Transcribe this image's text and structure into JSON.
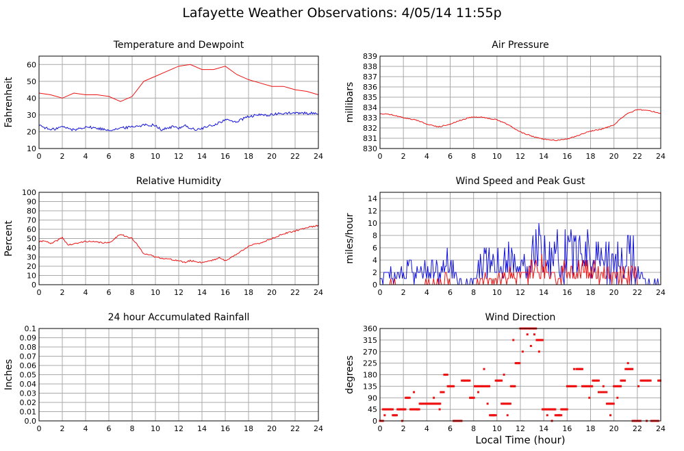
{
  "page": {
    "title": "Lafayette Weather Observations: 4/05/14 11:55p",
    "xlabel": "Local Time (hour)"
  },
  "colors": {
    "red": "#ee1111",
    "blue": "#1111dd",
    "grid": "#a8a8a8",
    "frame": "#000000"
  },
  "chart_data": [
    {
      "id": "temp",
      "type": "line",
      "title": "Temperature and Dewpoint",
      "ylabel": "Fahrenheit",
      "xlim": [
        0,
        24
      ],
      "ylim": [
        10,
        65
      ],
      "xticks": [
        0,
        2,
        4,
        6,
        8,
        10,
        12,
        14,
        16,
        18,
        20,
        22,
        24
      ],
      "yticks": [
        10,
        20,
        30,
        40,
        50,
        60
      ],
      "grid": true,
      "series": [
        {
          "color": "red",
          "x": [
            0,
            1,
            2,
            3,
            4,
            5,
            6,
            7,
            8,
            9,
            10,
            11,
            12,
            13,
            14,
            15,
            16,
            17,
            18,
            19,
            20,
            21,
            22,
            23,
            24
          ],
          "y": [
            43,
            42,
            40,
            43,
            42,
            42,
            41,
            38,
            41,
            50,
            53,
            56,
            59,
            60,
            57,
            57,
            59,
            54,
            51,
            49,
            47,
            47,
            45,
            44,
            42
          ]
        },
        {
          "color": "blue",
          "noise": 0.8,
          "x": [
            0,
            1,
            2,
            3,
            4,
            5,
            6,
            7,
            8,
            9,
            10,
            10.5,
            11,
            11.5,
            12,
            12.5,
            13,
            13.5,
            14,
            14.5,
            15,
            16,
            17,
            18,
            19,
            20,
            21,
            22,
            23,
            24
          ],
          "y": [
            24,
            21,
            23,
            21,
            23,
            22,
            21,
            22,
            23,
            24,
            24,
            21,
            22,
            23,
            22,
            24,
            22,
            21,
            22,
            23,
            24,
            27,
            26,
            29,
            30,
            30,
            31,
            31,
            31,
            31
          ]
        }
      ]
    },
    {
      "id": "pressure",
      "type": "line",
      "title": "Air Pressure",
      "ylabel": "millibars",
      "xlim": [
        0,
        24
      ],
      "ylim": [
        830,
        839
      ],
      "xticks": [
        0,
        2,
        4,
        6,
        8,
        10,
        12,
        14,
        16,
        18,
        20,
        22,
        24
      ],
      "yticks": [
        830,
        831,
        832,
        833,
        834,
        835,
        836,
        837,
        838,
        839
      ],
      "grid": true,
      "series": [
        {
          "color": "red",
          "noise": 0.05,
          "x": [
            0,
            1,
            2,
            3,
            4,
            5,
            6,
            7,
            8,
            9,
            10,
            11,
            12,
            13,
            14,
            15,
            16,
            17,
            18,
            19,
            20,
            21,
            22,
            23,
            24
          ],
          "y": [
            833.4,
            833.3,
            833,
            832.8,
            832.4,
            832.1,
            832.4,
            832.8,
            833.1,
            833,
            832.8,
            832.3,
            831.6,
            831.2,
            830.9,
            830.8,
            830.9,
            831.3,
            831.7,
            831.9,
            832.3,
            833.3,
            833.8,
            833.7,
            833.4
          ]
        }
      ]
    },
    {
      "id": "humidity",
      "type": "line",
      "title": "Relative Humidity",
      "ylabel": "Percent",
      "xlim": [
        0,
        24
      ],
      "ylim": [
        0,
        100
      ],
      "xticks": [
        0,
        2,
        4,
        6,
        8,
        10,
        12,
        14,
        16,
        18,
        20,
        22,
        24
      ],
      "yticks": [
        0,
        10,
        20,
        30,
        40,
        50,
        60,
        70,
        80,
        90,
        100
      ],
      "grid": true,
      "series": [
        {
          "color": "red",
          "noise": 0.8,
          "x": [
            0,
            0.5,
            1,
            2,
            2.5,
            3,
            4,
            5,
            6,
            6.5,
            7,
            7.5,
            8,
            8.5,
            9,
            10,
            11,
            12,
            12.5,
            13,
            14,
            15,
            15.5,
            16,
            17,
            18,
            19,
            20,
            21,
            22,
            23,
            24
          ],
          "y": [
            46,
            48,
            44,
            51,
            43,
            44,
            47,
            46,
            45,
            50,
            55,
            52,
            50,
            42,
            34,
            30,
            28,
            26,
            24,
            26,
            24,
            27,
            29,
            26,
            33,
            42,
            45,
            50,
            55,
            58,
            62,
            64
          ]
        }
      ]
    },
    {
      "id": "wind",
      "type": "line",
      "title": "Wind Speed and Peak Gust",
      "ylabel": "miles/hour",
      "xlim": [
        0,
        24
      ],
      "ylim": [
        0,
        15
      ],
      "xticks": [
        0,
        2,
        4,
        6,
        8,
        10,
        12,
        14,
        16,
        18,
        20,
        22,
        24
      ],
      "yticks": [
        0,
        2,
        4,
        6,
        8,
        10,
        12,
        14
      ],
      "grid": true,
      "series": [
        {
          "color": "blue",
          "random": 1,
          "seed": 7,
          "env_x": [
            0,
            1,
            2,
            2.5,
            3,
            4,
            5,
            5.5,
            6,
            6.5,
            7,
            8,
            8.5,
            9,
            10,
            11,
            12,
            13,
            13.7,
            14,
            15,
            16,
            17,
            18,
            19,
            20,
            21,
            21.7,
            22,
            23,
            24
          ],
          "env_y": [
            2,
            3,
            3,
            6,
            4,
            4,
            4,
            6,
            8,
            2,
            1,
            1,
            5,
            7,
            6,
            7,
            6,
            8,
            13,
            9,
            12,
            9,
            8,
            9,
            8,
            7,
            8,
            9,
            3,
            1,
            1
          ]
        },
        {
          "color": "red",
          "random": 1,
          "seed": 13,
          "env_x": [
            0,
            1,
            2,
            4,
            5,
            5.8,
            6,
            7,
            8,
            9,
            10,
            11,
            12,
            13,
            14,
            15,
            16,
            17,
            18,
            19,
            20,
            21,
            21.8,
            22,
            24
          ],
          "env_y": [
            0,
            1,
            0,
            1,
            1,
            2,
            0,
            0,
            0,
            2,
            2,
            3,
            3,
            4,
            5,
            4,
            4,
            4,
            4,
            3,
            3,
            4,
            4,
            0,
            0
          ]
        }
      ]
    },
    {
      "id": "rain",
      "type": "line",
      "title": "24 hour Accumulated Rainfall",
      "ylabel": "Inches",
      "xlim": [
        0,
        24
      ],
      "ylim": [
        0,
        0.1
      ],
      "xticks": [
        0,
        2,
        4,
        6,
        8,
        10,
        12,
        14,
        16,
        18,
        20,
        22,
        24
      ],
      "yticks": [
        0,
        0.01,
        0.02,
        0.03,
        0.04,
        0.05,
        0.06,
        0.07,
        0.08,
        0.09,
        0.1
      ],
      "ytick_labels": [
        "0.0",
        "0.01",
        "0.02",
        "0.03",
        "0.04",
        "0.05",
        "0.06",
        "0.07",
        "0.08",
        "0.09",
        "0.1"
      ],
      "grid": true,
      "series": [
        {
          "color": "red",
          "x": [
            0,
            24
          ],
          "y": [
            0,
            0
          ]
        }
      ]
    },
    {
      "id": "direction",
      "type": "scatter",
      "title": "Wind Direction",
      "ylabel": "degrees",
      "xlim": [
        0,
        24
      ],
      "ylim": [
        0,
        360
      ],
      "xticks": [
        0,
        2,
        4,
        6,
        8,
        10,
        12,
        14,
        16,
        18,
        20,
        22,
        24
      ],
      "yticks": [
        0,
        45,
        90,
        135,
        180,
        225,
        270,
        315,
        360
      ],
      "grid": true,
      "series": [
        {
          "color": "red",
          "step": 0.083,
          "segments": [
            [
              0.0,
              0.25,
              0
            ],
            [
              0.25,
              1.1,
              45
            ],
            [
              1.1,
              1.5,
              22
            ],
            [
              1.5,
              2.2,
              45
            ],
            [
              2.2,
              2.6,
              90
            ],
            [
              2.6,
              3.4,
              45
            ],
            [
              3.4,
              5.2,
              67
            ],
            [
              5.2,
              5.5,
              112
            ],
            [
              5.5,
              5.8,
              180
            ],
            [
              5.8,
              6.3,
              135
            ],
            [
              6.3,
              7.0,
              0
            ],
            [
              7.0,
              7.7,
              157
            ],
            [
              7.7,
              8.1,
              90
            ],
            [
              8.1,
              9.4,
              135
            ],
            [
              9.4,
              9.9,
              22
            ],
            [
              9.9,
              10.4,
              157
            ],
            [
              10.4,
              11.2,
              67
            ],
            [
              11.2,
              11.6,
              135
            ],
            [
              11.6,
              12.0,
              225
            ],
            [
              12.0,
              13.4,
              360
            ],
            [
              13.4,
              13.9,
              315
            ],
            [
              13.9,
              15.0,
              45
            ],
            [
              15.0,
              15.5,
              22
            ],
            [
              15.5,
              16.0,
              45
            ],
            [
              16.0,
              16.8,
              135
            ],
            [
              16.8,
              17.3,
              202
            ],
            [
              17.3,
              18.2,
              135
            ],
            [
              18.2,
              18.7,
              157
            ],
            [
              18.7,
              19.4,
              112
            ],
            [
              19.4,
              20.0,
              67
            ],
            [
              20.0,
              20.6,
              135
            ],
            [
              20.6,
              21.0,
              157
            ],
            [
              21.0,
              21.6,
              202
            ],
            [
              21.6,
              22.3,
              0
            ],
            [
              22.3,
              23.2,
              157
            ],
            [
              23.2,
              23.8,
              0
            ],
            [
              23.8,
              24.0,
              157
            ]
          ],
          "extra_x": [
            0.4,
            1.9,
            2.9,
            3.2,
            4.6,
            5.1,
            6.7,
            7.2,
            8.4,
            8.9,
            9.2,
            9.7,
            10.1,
            10.6,
            10.9,
            11.4,
            12.2,
            12.6,
            12.9,
            13.2,
            13.6,
            14.3,
            14.7,
            15.3,
            16.6,
            17.9,
            19.1,
            19.7,
            20.3,
            21.2,
            22.1,
            22.8
          ],
          "extra_y": [
            22,
            0,
            112,
            45,
            90,
            45,
            0,
            157,
            112,
            202,
            67,
            22,
            157,
            180,
            22,
            315,
            270,
            337,
            292,
            337,
            270,
            22,
            0,
            22,
            202,
            90,
            135,
            22,
            90,
            225,
            135,
            0
          ]
        }
      ]
    }
  ]
}
